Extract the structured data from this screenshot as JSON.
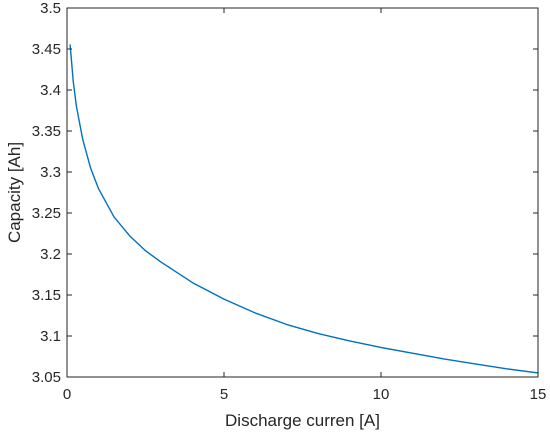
{
  "chart_data": {
    "type": "line",
    "title": "",
    "xlabel": "Discharge curren [A]",
    "ylabel": "Capacity [Ah]",
    "xlim": [
      0,
      15
    ],
    "ylim": [
      3.05,
      3.5
    ],
    "grid": false,
    "legend": "none",
    "xticks": [
      0,
      5,
      10,
      15
    ],
    "xtick_labels": [
      "0",
      "5",
      "10",
      "15"
    ],
    "yticks": [
      3.05,
      3.1,
      3.15,
      3.2,
      3.25,
      3.3,
      3.35,
      3.4,
      3.45,
      3.5
    ],
    "ytick_labels": [
      "3.05",
      "3.1",
      "3.15",
      "3.2",
      "3.25",
      "3.3",
      "3.35",
      "3.4",
      "3.45",
      "3.5"
    ],
    "series": [
      {
        "color": "#0072bd",
        "x": [
          0.1,
          0.2,
          0.3,
          0.5,
          0.75,
          1,
          1.5,
          2,
          2.5,
          3,
          4,
          5,
          6,
          7,
          8,
          9,
          10,
          11,
          12,
          13,
          14,
          15
        ],
        "y": [
          3.455,
          3.41,
          3.38,
          3.34,
          3.305,
          3.28,
          3.245,
          3.222,
          3.204,
          3.19,
          3.165,
          3.145,
          3.128,
          3.114,
          3.103,
          3.094,
          3.086,
          3.079,
          3.072,
          3.066,
          3.06,
          3.055
        ]
      }
    ]
  },
  "colors": {
    "axis": "#262626",
    "background": "#ffffff"
  }
}
